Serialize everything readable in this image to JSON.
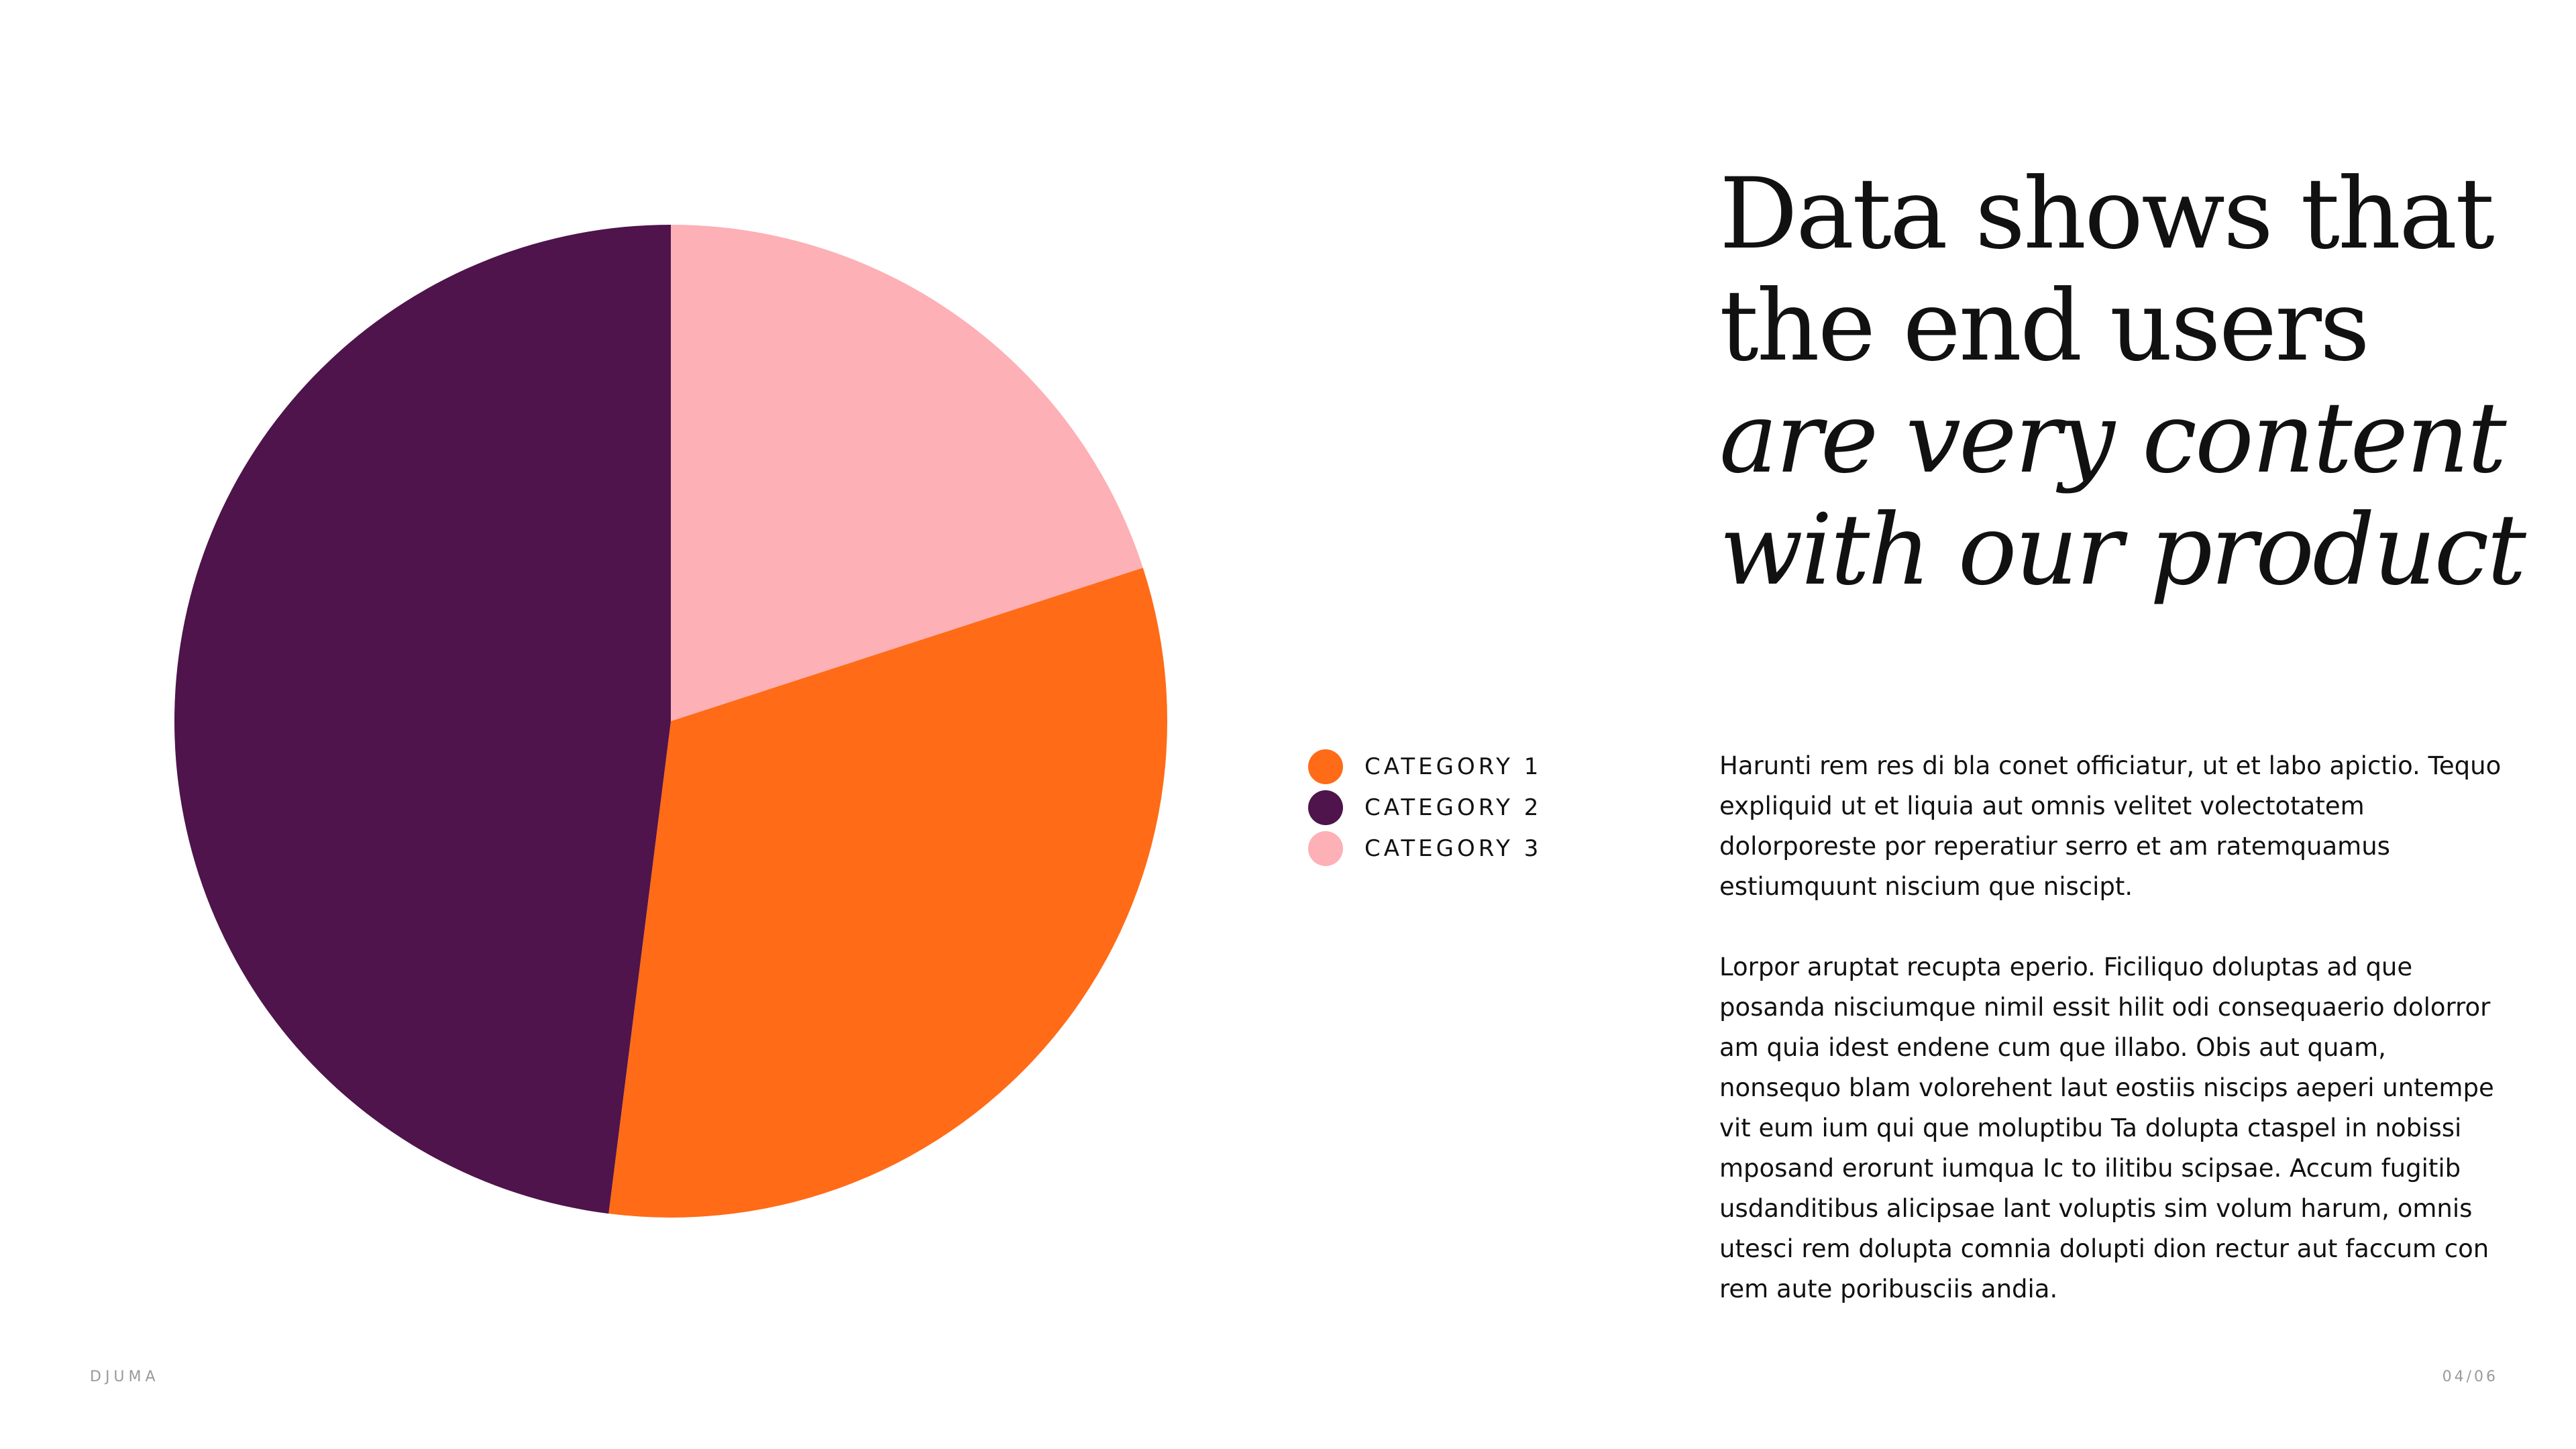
{
  "chart_data": {
    "type": "pie",
    "categories": [
      "CATEGORY 1",
      "CATEGORY 2",
      "CATEGORY 3"
    ],
    "values": [
      32,
      48,
      20
    ],
    "colors": [
      "#ff6b17",
      "#4e144b",
      "#fdb0b5"
    ],
    "start_angle_deg": -18,
    "legend_position": "right"
  },
  "headline": {
    "line1": "Data shows that",
    "line2": "the end users",
    "line3": "are very content",
    "line4": "with our product"
  },
  "body": {
    "paragraph1": "Harunti rem res di bla conet officiatur, ut et labo apictio. Tequo expliquid ut et liquia aut omnis velitet volectotatem dolorporeste por reperatiur serro et am ratemquamus estiumquunt niscium que niscipt.",
    "paragraph2": "Lorpor aruptat recupta eperio. Ficiliquo doluptas ad que posanda nisciumque nimil essit hilit odi consequaerio dolorror am quia idest endene cum que illabo. Obis aut quam, nonsequo blam volorehent laut eostiis niscips aeperi untempe vit eum ium qui que moluptibu Ta dolupta ctaspel in nobissi mposand erorunt iumqua Ic to ilitibu scipsae. Accum fugitib usdanditibus alicipsae lant voluptis sim volum harum, omnis utesci rem dolupta comnia dolupti dion rectur aut faccum con rem aute poribusciis andia."
  },
  "footer": {
    "brand": "DJUMA",
    "page": "04/06"
  }
}
